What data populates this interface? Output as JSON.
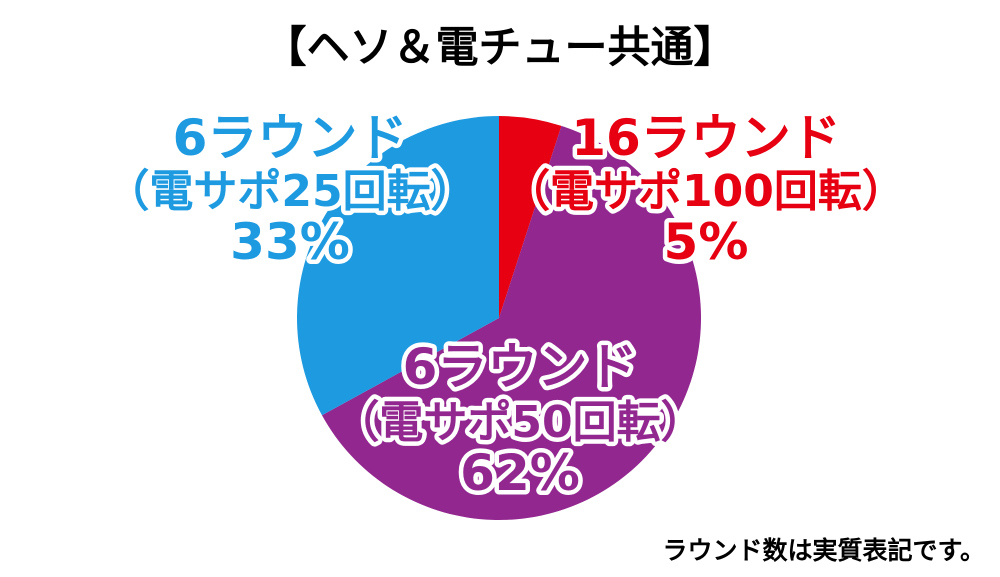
{
  "title": "【ヘソ＆電チュー共通】",
  "footnote": "ラウンド数は実質表記です。",
  "chart_data": {
    "type": "pie",
    "title": "【ヘソ＆電チュー共通】",
    "start_angle_deg": 0,
    "direction": "clockwise",
    "slices": [
      {
        "label_round": "16ラウンド",
        "label_detail": "（電サポ100回転）",
        "percent_label": "5%",
        "value": 5,
        "color": "#e60012"
      },
      {
        "label_round": "6ラウンド",
        "label_detail": "（電サポ50回転）",
        "percent_label": "62%",
        "value": 62,
        "color": "#92278f"
      },
      {
        "label_round": "6ラウンド",
        "label_detail": "（電サポ25回転）",
        "percent_label": "33%",
        "value": 33,
        "color": "#1e9ae0"
      }
    ]
  }
}
